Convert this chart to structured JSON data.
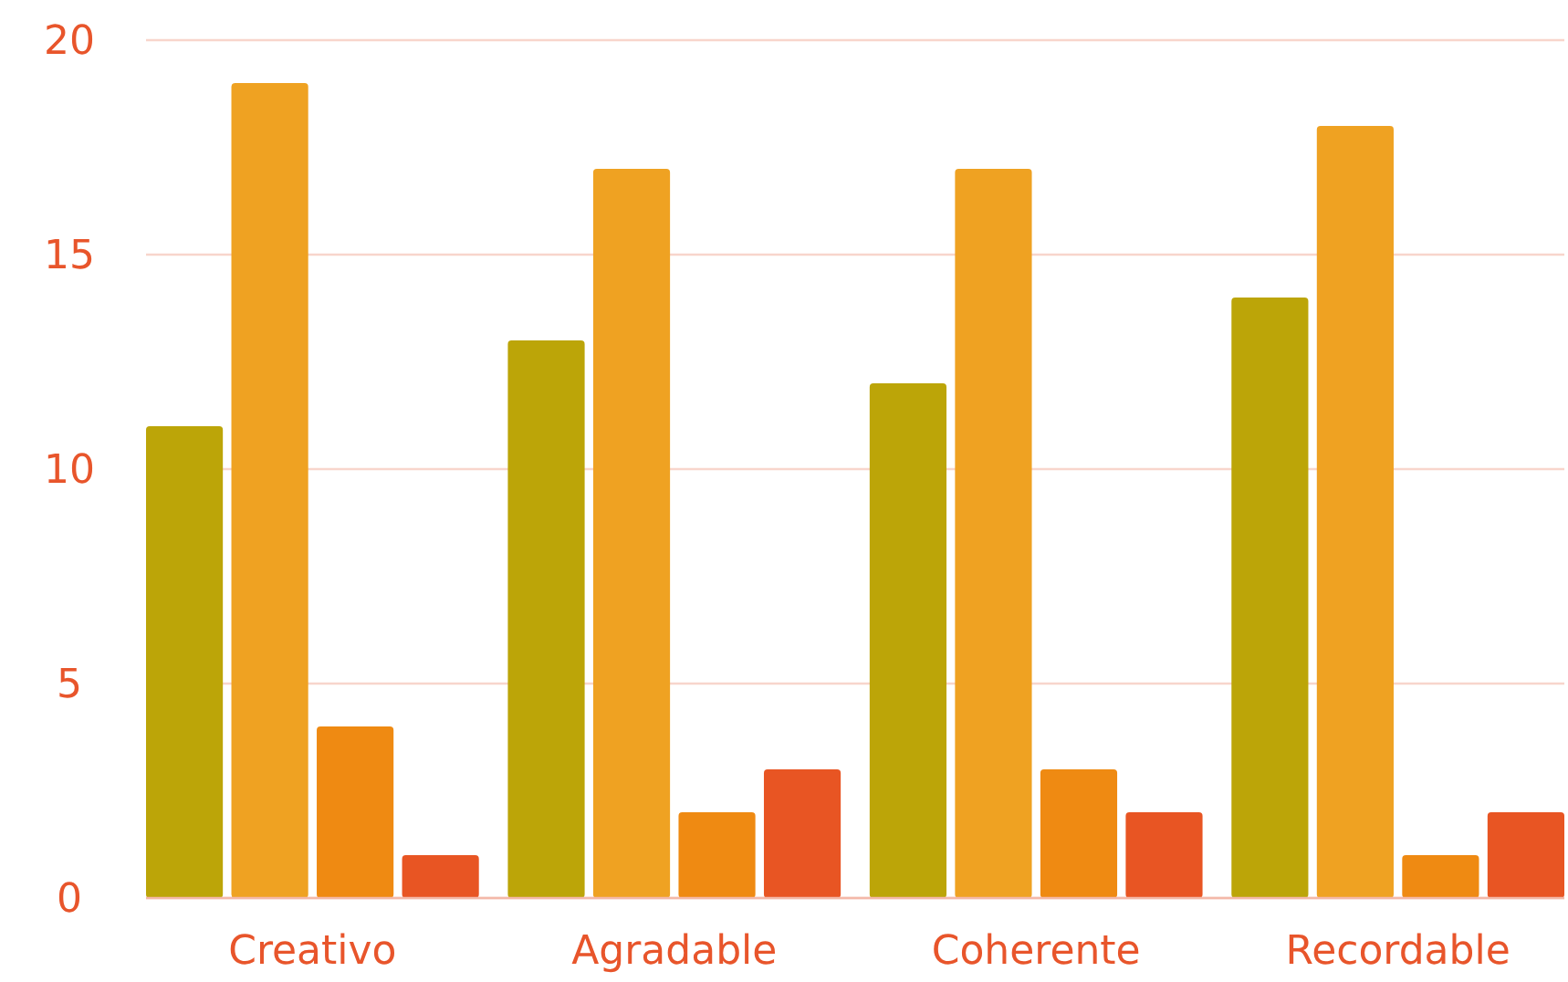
{
  "chart_data": {
    "type": "bar",
    "categories": [
      "Creativo",
      "Agradable",
      "Coherente",
      "Recordable"
    ],
    "series": [
      {
        "color": "#bca508",
        "values": [
          11,
          13,
          12,
          14
        ]
      },
      {
        "color": "#efa222",
        "values": [
          19,
          17,
          17,
          18
        ]
      },
      {
        "color": "#ef8a12",
        "values": [
          4,
          2,
          3,
          1
        ]
      },
      {
        "color": "#e85523",
        "values": [
          1,
          3,
          2,
          2
        ]
      }
    ],
    "ylim": [
      0,
      20
    ],
    "yticks": [
      0,
      5,
      10,
      15,
      20
    ],
    "grid": "y"
  }
}
